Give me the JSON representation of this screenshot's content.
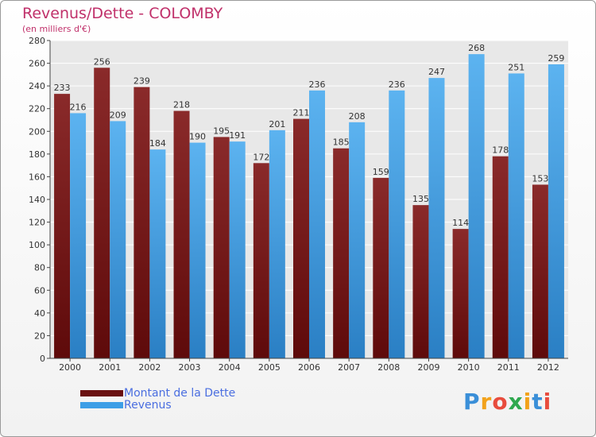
{
  "title": "Revenus/Dette - COLOMBY",
  "subtitle": "(en milliers d'€)",
  "logo": {
    "letters": [
      "P",
      "r",
      "o",
      "x",
      "i",
      "t",
      "i"
    ],
    "colors": [
      "#3a8fd8",
      "#f2a21b",
      "#e84c3d",
      "#2fa84f",
      "#f2a21b",
      "#3a8fd8",
      "#e84c3d"
    ]
  },
  "chart_data": {
    "type": "bar",
    "categories": [
      "2000",
      "2001",
      "2002",
      "2003",
      "2004",
      "2005",
      "2006",
      "2007",
      "2008",
      "2009",
      "2010",
      "2011",
      "2012"
    ],
    "series": [
      {
        "name": "Montant de la Dette",
        "color": "#7a1a1a",
        "values": [
          233,
          256,
          239,
          218,
          195,
          172,
          211,
          185,
          159,
          135,
          114,
          178,
          153
        ]
      },
      {
        "name": "Revenus",
        "color": "#3d9ee6",
        "values": [
          216,
          209,
          184,
          190,
          191,
          201,
          236,
          208,
          236,
          247,
          268,
          251,
          259
        ]
      }
    ],
    "ylim": [
      0,
      280
    ],
    "yticks": [
      0,
      20,
      40,
      60,
      80,
      100,
      120,
      140,
      160,
      180,
      200,
      220,
      240,
      260,
      280
    ],
    "grid": true,
    "legend": "bottom-left"
  }
}
